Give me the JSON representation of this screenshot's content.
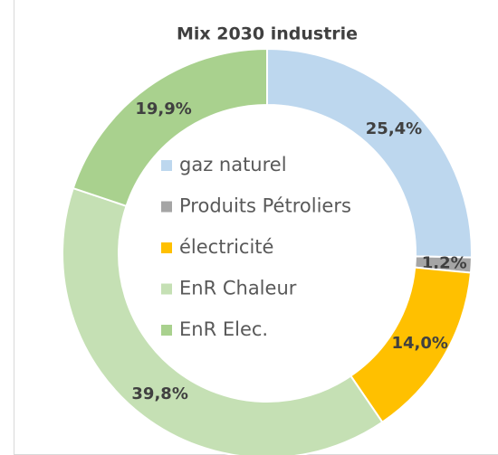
{
  "chart_data": {
    "type": "donut",
    "title": "Mix 2030 industrie",
    "categories": [
      "gaz naturel",
      "Produits Pétroliers",
      "électricité",
      "EnR Chaleur",
      "EnR Elec."
    ],
    "values": [
      25.4,
      1.2,
      14.0,
      39.8,
      19.9
    ],
    "value_labels": [
      "25,4%",
      "1,2%",
      "14,0%",
      "39,8%",
      "19,9%"
    ],
    "colors": [
      "#bdd7ee",
      "#a5a5a5",
      "#ffc000",
      "#c5e0b4",
      "#a9d18e"
    ],
    "legend": "center"
  }
}
